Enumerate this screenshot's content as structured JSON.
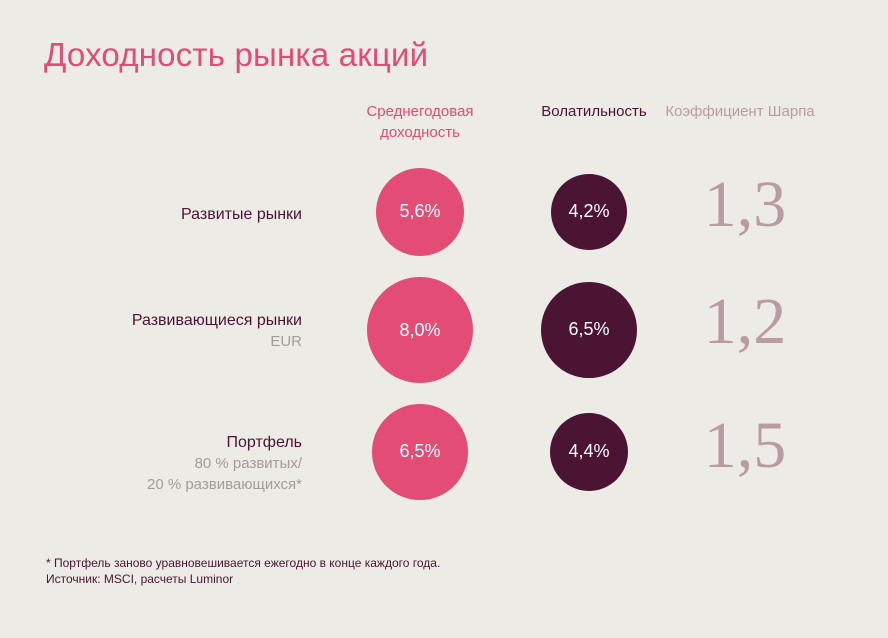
{
  "title": "Доходность рынка акций",
  "columns": {
    "return": "Среднегодовая доходность",
    "volatility": "Волатильность",
    "sharpe": "Коэффициент Шарпа"
  },
  "rows": [
    {
      "label": "Развитые рынки",
      "sublabel1": "",
      "sublabel2": "",
      "return_text": "5,6%",
      "volatility_text": "4,2%",
      "sharpe_text": "1,3"
    },
    {
      "label": "Развивающиеся рынки",
      "sublabel1": "EUR",
      "sublabel2": "",
      "return_text": "8,0%",
      "volatility_text": "6,5%",
      "sharpe_text": "1,2"
    },
    {
      "label": "Портфель",
      "sublabel1": "80 % развитых/",
      "sublabel2": "20 % развивающихся*",
      "return_text": "6,5%",
      "volatility_text": "4,4%",
      "sharpe_text": "1,5"
    }
  ],
  "footnote": {
    "line1": "* Портфель заново уравновешивается ежегодно в конце каждого года.",
    "line2": "Источник: MSCI, расчеты Luminor"
  },
  "colors": {
    "return": "#e24c75",
    "volatility": "#4a1432",
    "sharpe": "#b89ca2",
    "background": "#ecebe6"
  },
  "chart_data": {
    "type": "table",
    "title": "Доходность рынка акций",
    "categories": [
      "Развитые рынки",
      "Развивающиеся рынки",
      "Портфель"
    ],
    "series": [
      {
        "name": "Среднегодовая доходность",
        "values": [
          5.6,
          8.0,
          6.5
        ]
      },
      {
        "name": "Волатильность",
        "values": [
          4.2,
          6.5,
          4.4
        ]
      },
      {
        "name": "Коэффициент Шарпа",
        "values": [
          1.3,
          1.2,
          1.5
        ]
      }
    ]
  }
}
